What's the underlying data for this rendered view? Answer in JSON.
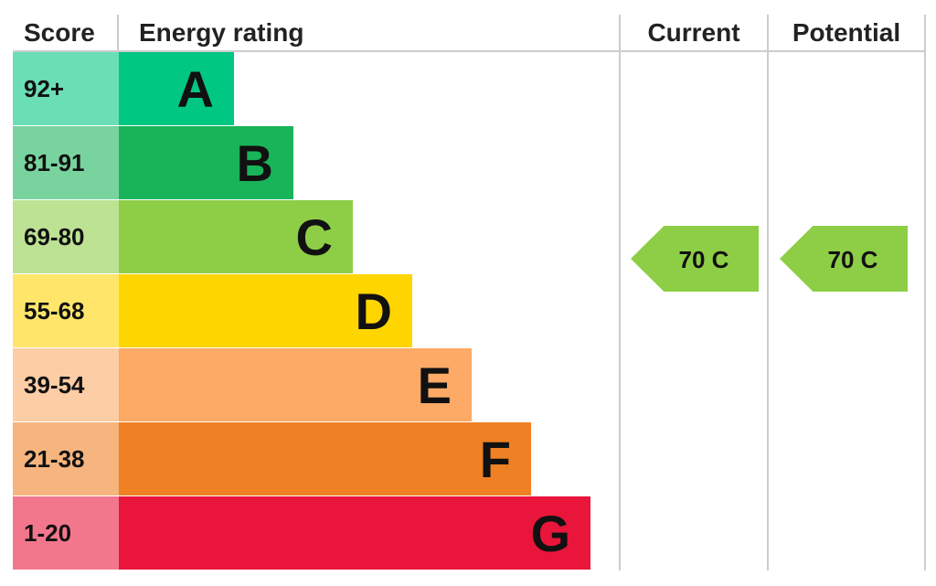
{
  "header": {
    "score": "Score",
    "rating": "Energy rating",
    "current": "Current",
    "potential": "Potential"
  },
  "bands": [
    {
      "score": "92+",
      "letter": "A",
      "color": "#00c781"
    },
    {
      "score": "81-91",
      "letter": "B",
      "color": "#19b459"
    },
    {
      "score": "69-80",
      "letter": "C",
      "color": "#8dce46"
    },
    {
      "score": "55-68",
      "letter": "D",
      "color": "#ffd500"
    },
    {
      "score": "39-54",
      "letter": "E",
      "color": "#fcaa65"
    },
    {
      "score": "21-38",
      "letter": "F",
      "color": "#ef8023"
    },
    {
      "score": "1-20",
      "letter": "G",
      "color": "#e9153b"
    }
  ],
  "current": {
    "label": "70 C",
    "band": 2
  },
  "potential": {
    "label": "70 C",
    "band": 2
  }
}
